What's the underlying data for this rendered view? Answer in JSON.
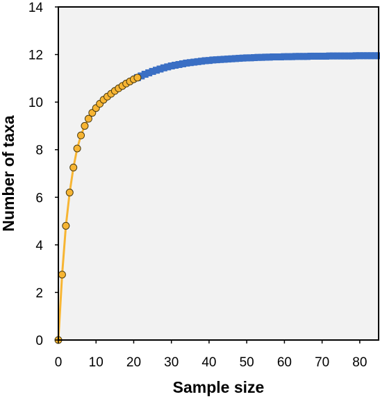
{
  "chart_data": {
    "type": "scatter",
    "title": "",
    "xlabel": "Sample size",
    "ylabel": "Number of taxa",
    "xlim": [
      0,
      85
    ],
    "ylim": [
      0,
      14
    ],
    "xticks": [
      "0",
      "10",
      "20",
      "30",
      "40",
      "50",
      "60",
      "70",
      "80"
    ],
    "yticks": [
      "0",
      "2",
      "4",
      "6",
      "8",
      "10",
      "12",
      "14"
    ],
    "grid": false,
    "legend": "none",
    "colors": {
      "background": "#f2f2f2",
      "observed_fill": "#f7b533",
      "observed_stroke": "#4a3a10",
      "observed_line": "#f7b533",
      "extrapolated": "#3a6fc4"
    },
    "series": [
      {
        "kind": "observed",
        "x": [
          0,
          1,
          2,
          3,
          4,
          5,
          6,
          7,
          8,
          9,
          10,
          11,
          12,
          13,
          14,
          15,
          16,
          17,
          18,
          19,
          20,
          21
        ],
        "y": [
          0,
          2.75,
          4.8,
          6.2,
          7.25,
          8.05,
          8.6,
          9.0,
          9.3,
          9.55,
          9.75,
          9.93,
          10.1,
          10.23,
          10.35,
          10.47,
          10.58,
          10.68,
          10.78,
          10.87,
          10.96,
          11.03
        ]
      },
      {
        "kind": "extrapolated",
        "x": [
          21,
          22,
          23,
          24,
          25,
          26,
          27,
          28,
          29,
          30,
          31,
          32,
          33,
          34,
          35,
          36,
          37,
          38,
          39,
          40,
          41,
          42,
          43,
          44,
          45,
          46,
          47,
          48,
          49,
          50,
          51,
          52,
          53,
          54,
          55,
          56,
          57,
          58,
          59,
          60,
          61,
          62,
          63,
          64,
          65,
          66,
          67,
          68,
          69,
          70,
          71,
          72,
          73,
          74,
          75,
          76,
          77,
          78,
          79,
          80,
          81,
          82,
          83,
          84,
          85
        ],
        "y": [
          11.03,
          11.1,
          11.17,
          11.23,
          11.29,
          11.34,
          11.39,
          11.44,
          11.48,
          11.52,
          11.55,
          11.58,
          11.61,
          11.64,
          11.66,
          11.68,
          11.7,
          11.72,
          11.74,
          11.75,
          11.77,
          11.78,
          11.79,
          11.8,
          11.81,
          11.82,
          11.83,
          11.84,
          11.85,
          11.86,
          11.86,
          11.87,
          11.88,
          11.88,
          11.89,
          11.89,
          11.9,
          11.9,
          11.9,
          11.91,
          11.91,
          11.91,
          11.92,
          11.92,
          11.92,
          11.92,
          11.93,
          11.93,
          11.93,
          11.93,
          11.93,
          11.94,
          11.94,
          11.94,
          11.94,
          11.94,
          11.94,
          11.94,
          11.95,
          11.95,
          11.95,
          11.95,
          11.95,
          11.95,
          11.95
        ]
      }
    ]
  }
}
